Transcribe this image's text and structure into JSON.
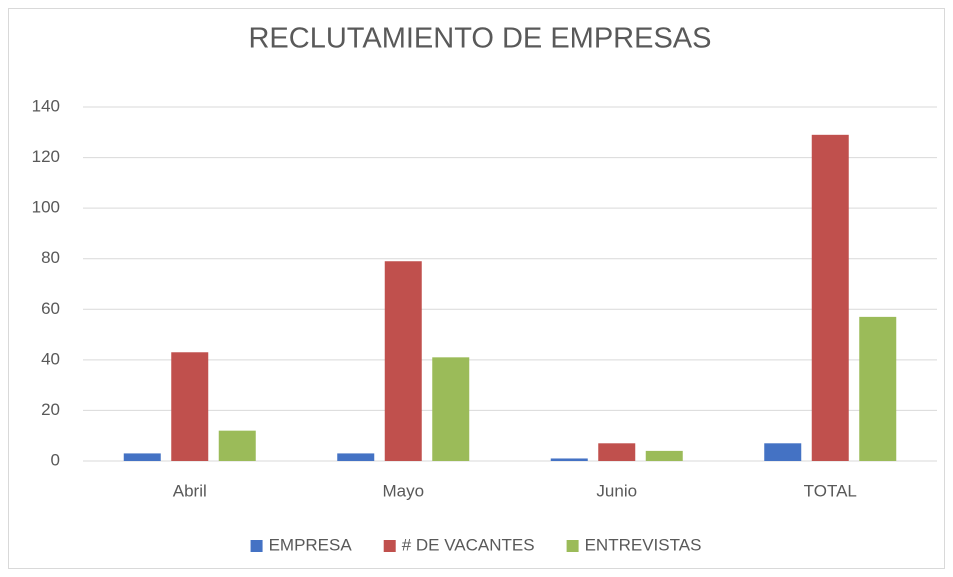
{
  "chart_data": {
    "type": "bar",
    "title": "RECLUTAMIENTO DE EMPRESAS",
    "categories": [
      "Abril",
      "Mayo",
      "Junio",
      "TOTAL"
    ],
    "series": [
      {
        "name": "EMPRESA",
        "color": "#4472c4",
        "values": [
          3,
          3,
          1,
          7
        ]
      },
      {
        "name": "# DE VACANTES",
        "color": "#c0504d",
        "values": [
          43,
          79,
          7,
          129
        ]
      },
      {
        "name": "ENTREVISTAS",
        "color": "#9bbb59",
        "values": [
          12,
          41,
          4,
          57
        ]
      }
    ],
    "ylim": [
      0,
      140
    ],
    "yticks": [
      0,
      20,
      40,
      60,
      80,
      100,
      120,
      140
    ],
    "grid": true,
    "legend": "bottom"
  }
}
